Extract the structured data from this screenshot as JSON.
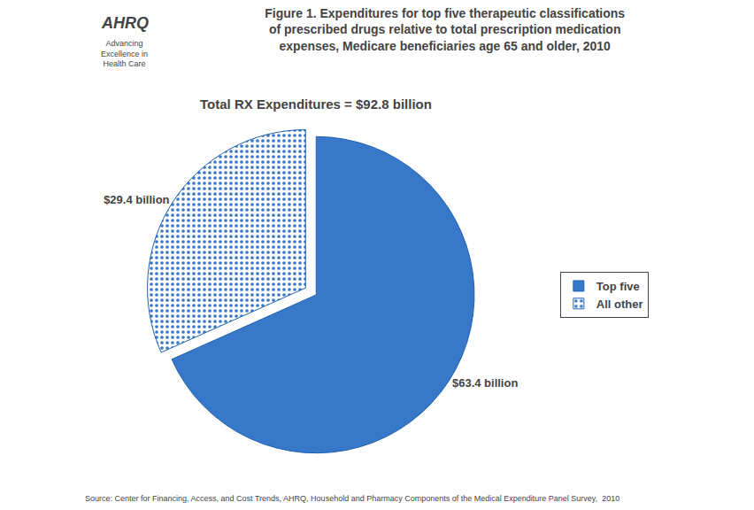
{
  "chart_data": {
    "type": "pie",
    "title": "Figure 1. Expenditures for top five therapeutic classifications\nof prescribed drugs relative to total prescription medication\nexpenses, Medicare beneficiaries age 65 and older, 2010",
    "subtitle": "Total RX Expenditures = $92.8 billion",
    "categories": [
      "Top five",
      "All other"
    ],
    "values": [
      63.4,
      29.4
    ],
    "value_labels": [
      "$63.4 billion",
      "$29.4 billion"
    ],
    "data_labels": true,
    "colors": [
      "#3878C8",
      "#FFFFFF"
    ],
    "legend": "right",
    "annotations": [
      "AHRQ",
      "Advancing\nExcellence in\nHealth Care",
      "Source: Center for Financing, Access, and Cost Trends, AHRQ, Household and Pharmacy Components of the Medical Expenditure Panel Survey,  2010"
    ]
  }
}
